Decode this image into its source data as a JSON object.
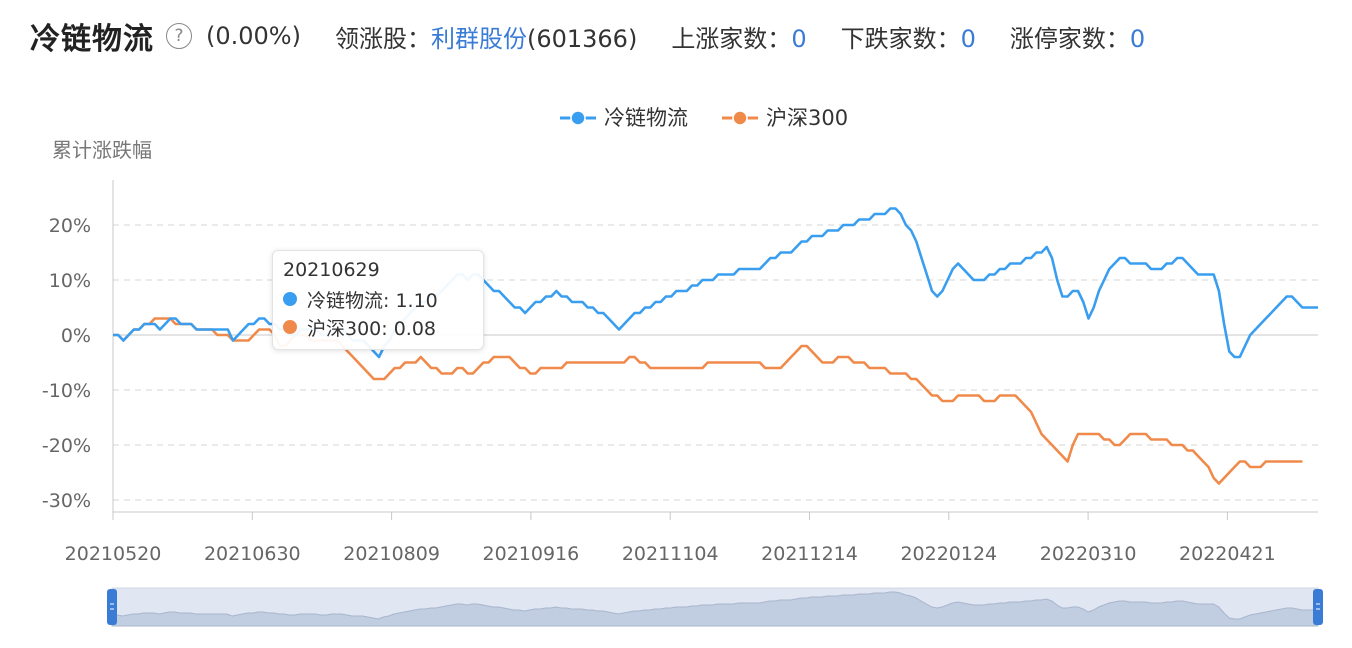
{
  "header": {
    "title": "冷链物流",
    "change_pct": "(0.00%)",
    "leader_label": "领涨股：",
    "leader_value": "利群股份",
    "leader_code": "(601366)",
    "up_label": "上涨家数：",
    "up_value": "0",
    "down_label": "下跌家数：",
    "down_value": "0",
    "limit_label": "涨停家数：",
    "limit_value": "0"
  },
  "tooltip": {
    "date": "20210629",
    "rows": [
      {
        "label": "冷链物流: 1.10",
        "color": "#3a9ef0"
      },
      {
        "label": "沪深300: 0.08",
        "color": "#f08a4b"
      }
    ]
  },
  "chart_data": {
    "type": "line",
    "ylabel": "累计涨跌幅",
    "ylim": [
      -30,
      25
    ],
    "yticks": [
      20,
      10,
      0,
      -10,
      -20,
      -30
    ],
    "ytick_labels": [
      "20%",
      "10%",
      "0%",
      "-10%",
      "-20%",
      "-30%"
    ],
    "xticks": [
      "20210520",
      "20210630",
      "20210809",
      "20210916",
      "20211104",
      "20211214",
      "20220124",
      "20220310",
      "20220421"
    ],
    "grid": true,
    "legend_position": "top-center",
    "series": [
      {
        "name": "冷链物流",
        "color": "#3a9ef0",
        "values": [
          0,
          0,
          -1,
          0,
          1,
          1,
          2,
          2,
          2,
          1,
          2,
          3,
          3,
          2,
          2,
          2,
          1,
          1,
          1,
          1,
          1,
          1,
          1,
          -1,
          0,
          1,
          2,
          2,
          3,
          3,
          2,
          2,
          1,
          1,
          0,
          0,
          1,
          1,
          1,
          1,
          0,
          0,
          1,
          1,
          1,
          0,
          -1,
          -1,
          -1,
          -2,
          -3,
          -4,
          -2,
          -1,
          1,
          2,
          3,
          4,
          5,
          6,
          6,
          7,
          7,
          8,
          9,
          10,
          11,
          11,
          10,
          11,
          11,
          10,
          9,
          8,
          8,
          7,
          6,
          5,
          5,
          4,
          5,
          6,
          6,
          7,
          7,
          8,
          7,
          7,
          6,
          6,
          6,
          5,
          5,
          4,
          4,
          3,
          2,
          1,
          2,
          3,
          4,
          4,
          5,
          5,
          6,
          6,
          7,
          7,
          8,
          8,
          8,
          9,
          9,
          10,
          10,
          10,
          11,
          11,
          11,
          11,
          12,
          12,
          12,
          12,
          12,
          13,
          14,
          14,
          15,
          15,
          15,
          16,
          17,
          17,
          18,
          18,
          18,
          19,
          19,
          19,
          20,
          20,
          20,
          21,
          21,
          21,
          22,
          22,
          22,
          23,
          23,
          22,
          20,
          19,
          17,
          14,
          11,
          8,
          7,
          8,
          10,
          12,
          13,
          12,
          11,
          10,
          10,
          10,
          11,
          11,
          12,
          12,
          13,
          13,
          13,
          14,
          14,
          15,
          15,
          16,
          14,
          10,
          7,
          7,
          8,
          8,
          6,
          3,
          5,
          8,
          10,
          12,
          13,
          14,
          14,
          13,
          13,
          13,
          13,
          12,
          12,
          12,
          13,
          13,
          14,
          14,
          13,
          12,
          11,
          11,
          11,
          11,
          8,
          2,
          -3,
          -4,
          -4,
          -2,
          0,
          1,
          2,
          3,
          4,
          5,
          6,
          7,
          7,
          6,
          5,
          5,
          5,
          5
        ]
      },
      {
        "name": "沪深300",
        "color": "#f08a4b",
        "values": [
          0,
          0,
          -1,
          0,
          1,
          1,
          2,
          2,
          3,
          3,
          3,
          3,
          2,
          2,
          2,
          2,
          1,
          1,
          1,
          1,
          0,
          0,
          0,
          -1,
          -1,
          -1,
          -1,
          0,
          1,
          1,
          1,
          0,
          -2,
          -2,
          -1,
          0,
          0,
          0,
          -1,
          -1,
          -1,
          -1,
          -1,
          -1,
          -2,
          -3,
          -4,
          -5,
          -6,
          -7,
          -8,
          -8,
          -8,
          -7,
          -6,
          -6,
          -5,
          -5,
          -5,
          -4,
          -5,
          -6,
          -6,
          -7,
          -7,
          -7,
          -6,
          -6,
          -7,
          -7,
          -6,
          -5,
          -5,
          -4,
          -4,
          -4,
          -4,
          -5,
          -6,
          -6,
          -7,
          -7,
          -6,
          -6,
          -6,
          -6,
          -6,
          -5,
          -5,
          -5,
          -5,
          -5,
          -5,
          -5,
          -5,
          -5,
          -5,
          -5,
          -5,
          -4,
          -4,
          -5,
          -5,
          -6,
          -6,
          -6,
          -6,
          -6,
          -6,
          -6,
          -6,
          -6,
          -6,
          -6,
          -5,
          -5,
          -5,
          -5,
          -5,
          -5,
          -5,
          -5,
          -5,
          -5,
          -5,
          -6,
          -6,
          -6,
          -6,
          -5,
          -4,
          -3,
          -2,
          -2,
          -3,
          -4,
          -5,
          -5,
          -5,
          -4,
          -4,
          -4,
          -5,
          -5,
          -5,
          -6,
          -6,
          -6,
          -6,
          -7,
          -7,
          -7,
          -7,
          -8,
          -8,
          -9,
          -10,
          -11,
          -11,
          -12,
          -12,
          -12,
          -11,
          -11,
          -11,
          -11,
          -11,
          -12,
          -12,
          -12,
          -11,
          -11,
          -11,
          -11,
          -12,
          -13,
          -14,
          -16,
          -18,
          -19,
          -20,
          -21,
          -22,
          -23,
          -20,
          -18,
          -18,
          -18,
          -18,
          -18,
          -19,
          -19,
          -20,
          -20,
          -19,
          -18,
          -18,
          -18,
          -18,
          -19,
          -19,
          -19,
          -19,
          -20,
          -20,
          -20,
          -21,
          -21,
          -22,
          -23,
          -24,
          -26,
          -27,
          -26,
          -25,
          -24,
          -23,
          -23,
          -24,
          -24,
          -24,
          -23,
          -23,
          -23,
          -23,
          -23,
          -23,
          -23,
          -23
        ]
      }
    ]
  },
  "slider": {
    "start_fraction": 0,
    "end_fraction": 1
  }
}
